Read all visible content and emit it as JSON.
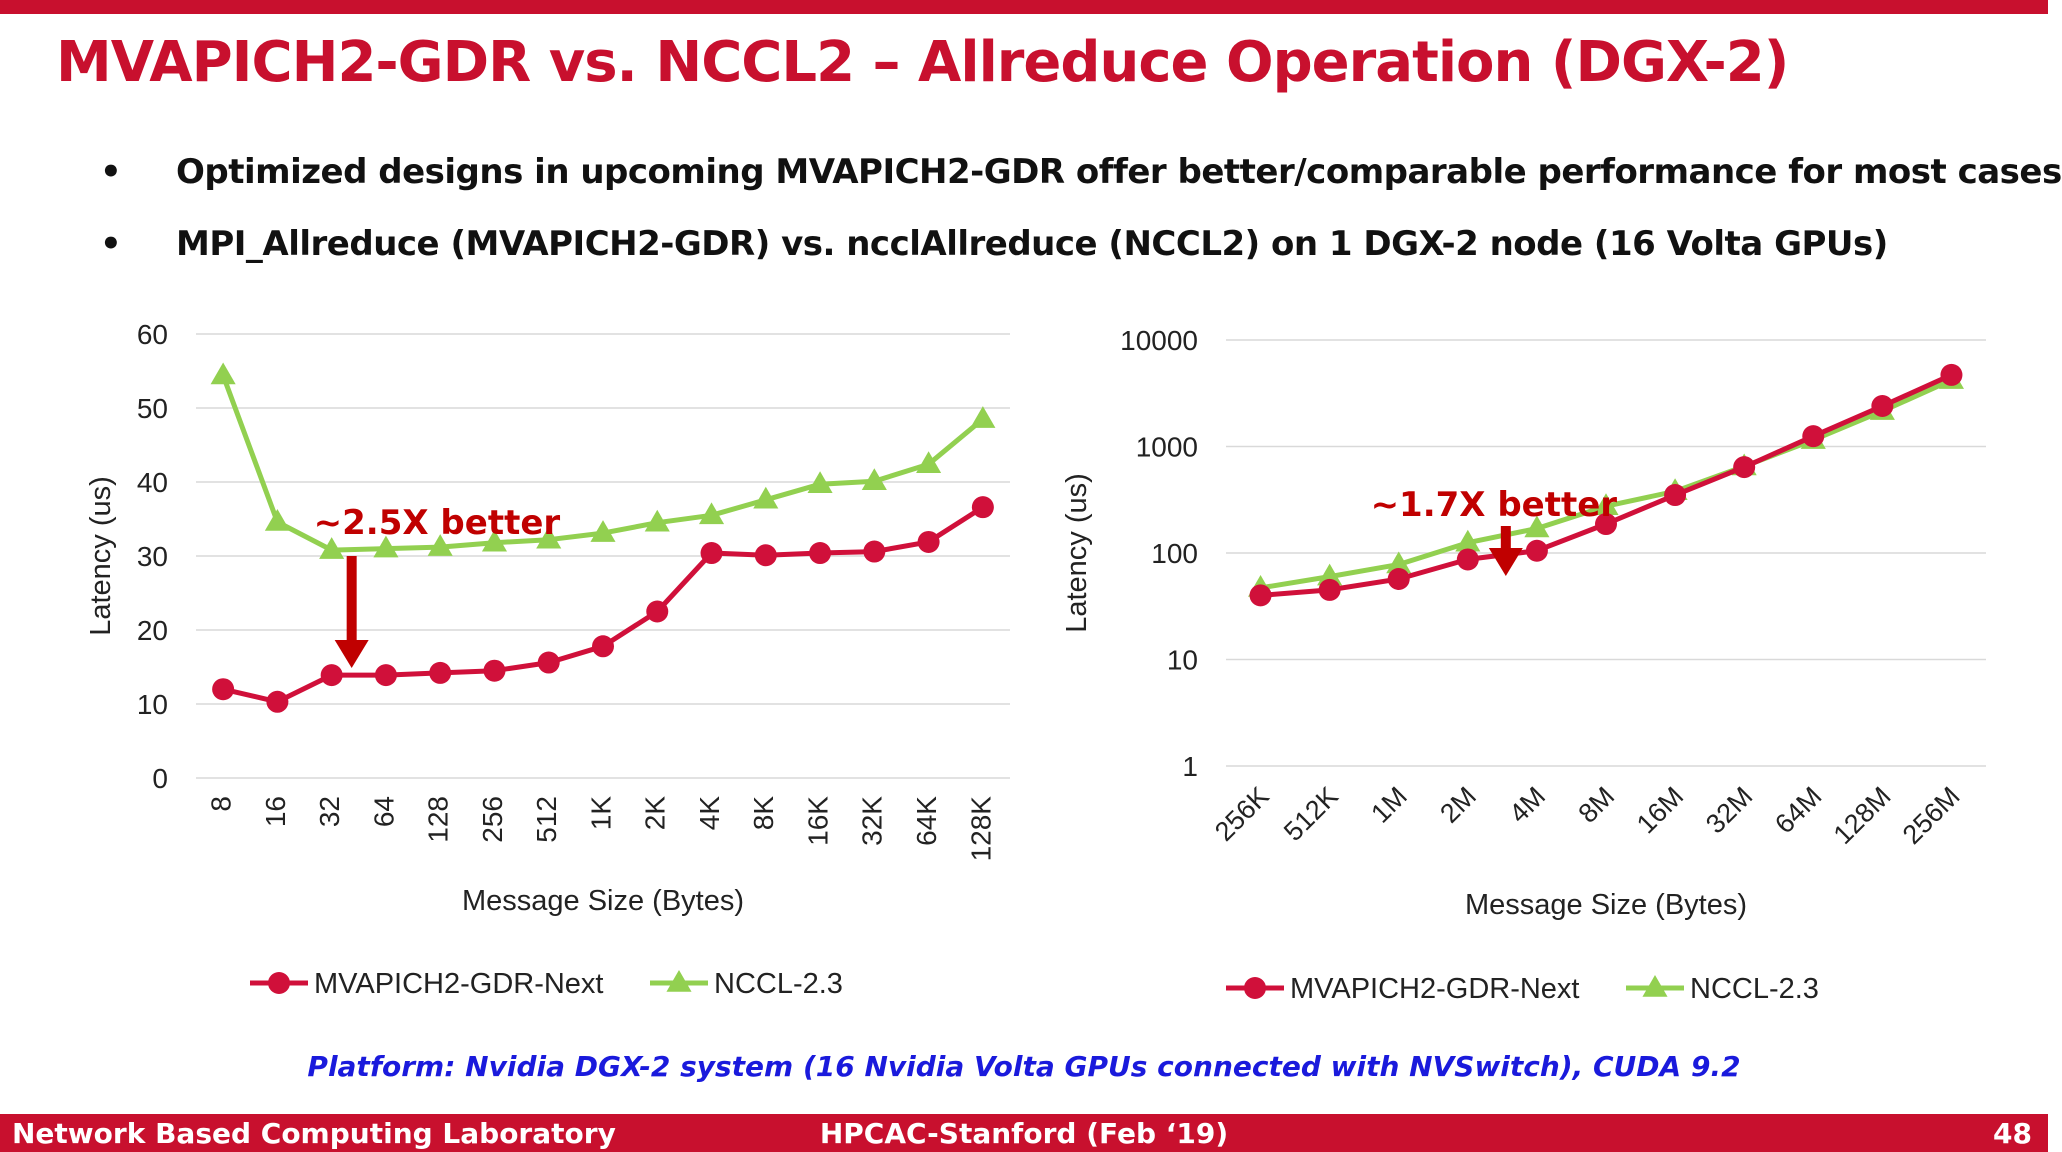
{
  "title": "MVAPICH2-GDR vs. NCCL2 – Allreduce Operation (DGX-2)",
  "bullets": [
    "Optimized designs in upcoming MVAPICH2-GDR offer better/comparable performance for most cases",
    "MPI_Allreduce (MVAPICH2-GDR) vs. ncclAllreduce (NCCL2) on 1 DGX-2 node (16 Volta GPUs)"
  ],
  "colors": {
    "accent": "#c8102e",
    "mvapich": "#d0103a",
    "nccl": "#92d050",
    "arrow": "#c00000",
    "platform": "#1a1adc"
  },
  "chart_data": [
    {
      "type": "line",
      "categories": [
        "8",
        "16",
        "32",
        "64",
        "128",
        "256",
        "512",
        "1K",
        "2K",
        "4K",
        "8K",
        "16K",
        "32K",
        "64K",
        "128K"
      ],
      "series": [
        {
          "name": "MVAPICH2-GDR-Next",
          "values": [
            12,
            10.3,
            13.9,
            13.9,
            14.2,
            14.5,
            15.6,
            17.8,
            22.5,
            30.4,
            30.1,
            30.4,
            30.6,
            31.9,
            36.6
          ]
        },
        {
          "name": "NCCL-2.3",
          "values": [
            54.4,
            34.6,
            30.8,
            31,
            31.2,
            31.8,
            32.2,
            33.1,
            34.5,
            35.5,
            37.6,
            39.7,
            40.1,
            42.4,
            48.5
          ]
        }
      ],
      "xlabel": "Message Size (Bytes)",
      "ylabel": "Latency (us)",
      "ylim": [
        0,
        60
      ],
      "yticks": [
        "0",
        "10",
        "20",
        "30",
        "40",
        "50",
        "60"
      ],
      "yscale": "linear",
      "grid": true,
      "legend": "bottom",
      "annotation": {
        "text": "~2.5X better",
        "at_category": "32"
      }
    },
    {
      "type": "line",
      "categories": [
        "256K",
        "512K",
        "1M",
        "2M",
        "4M",
        "8M",
        "16M",
        "32M",
        "64M",
        "128M",
        "256M"
      ],
      "series": [
        {
          "name": "MVAPICH2-GDR-Next",
          "values": [
            40,
            45,
            57,
            87,
            105,
            187,
            350,
            640,
            1250,
            2400,
            4700
          ]
        },
        {
          "name": "NCCL-2.3",
          "values": [
            47,
            60,
            78,
            125,
            170,
            275,
            380,
            650,
            1150,
            2150,
            4200
          ]
        }
      ],
      "xlabel": "Message Size (Bytes)",
      "ylabel": "Latency (us)",
      "ylim": [
        1,
        10000
      ],
      "yticks": [
        "1",
        "10",
        "100",
        "1000",
        "10000"
      ],
      "yscale": "log",
      "grid": true,
      "legend": "bottom",
      "annotation": {
        "text": "~1.7X better",
        "at_category": "2M"
      }
    }
  ],
  "platform_note": "Platform: Nvidia DGX-2 system (16 Nvidia Volta GPUs connected with NVSwitch), CUDA 9.2",
  "footer": {
    "lab": "Network Based Computing Laboratory",
    "conference": "HPCAC-Stanford (Feb ‘19)",
    "page": "48"
  }
}
